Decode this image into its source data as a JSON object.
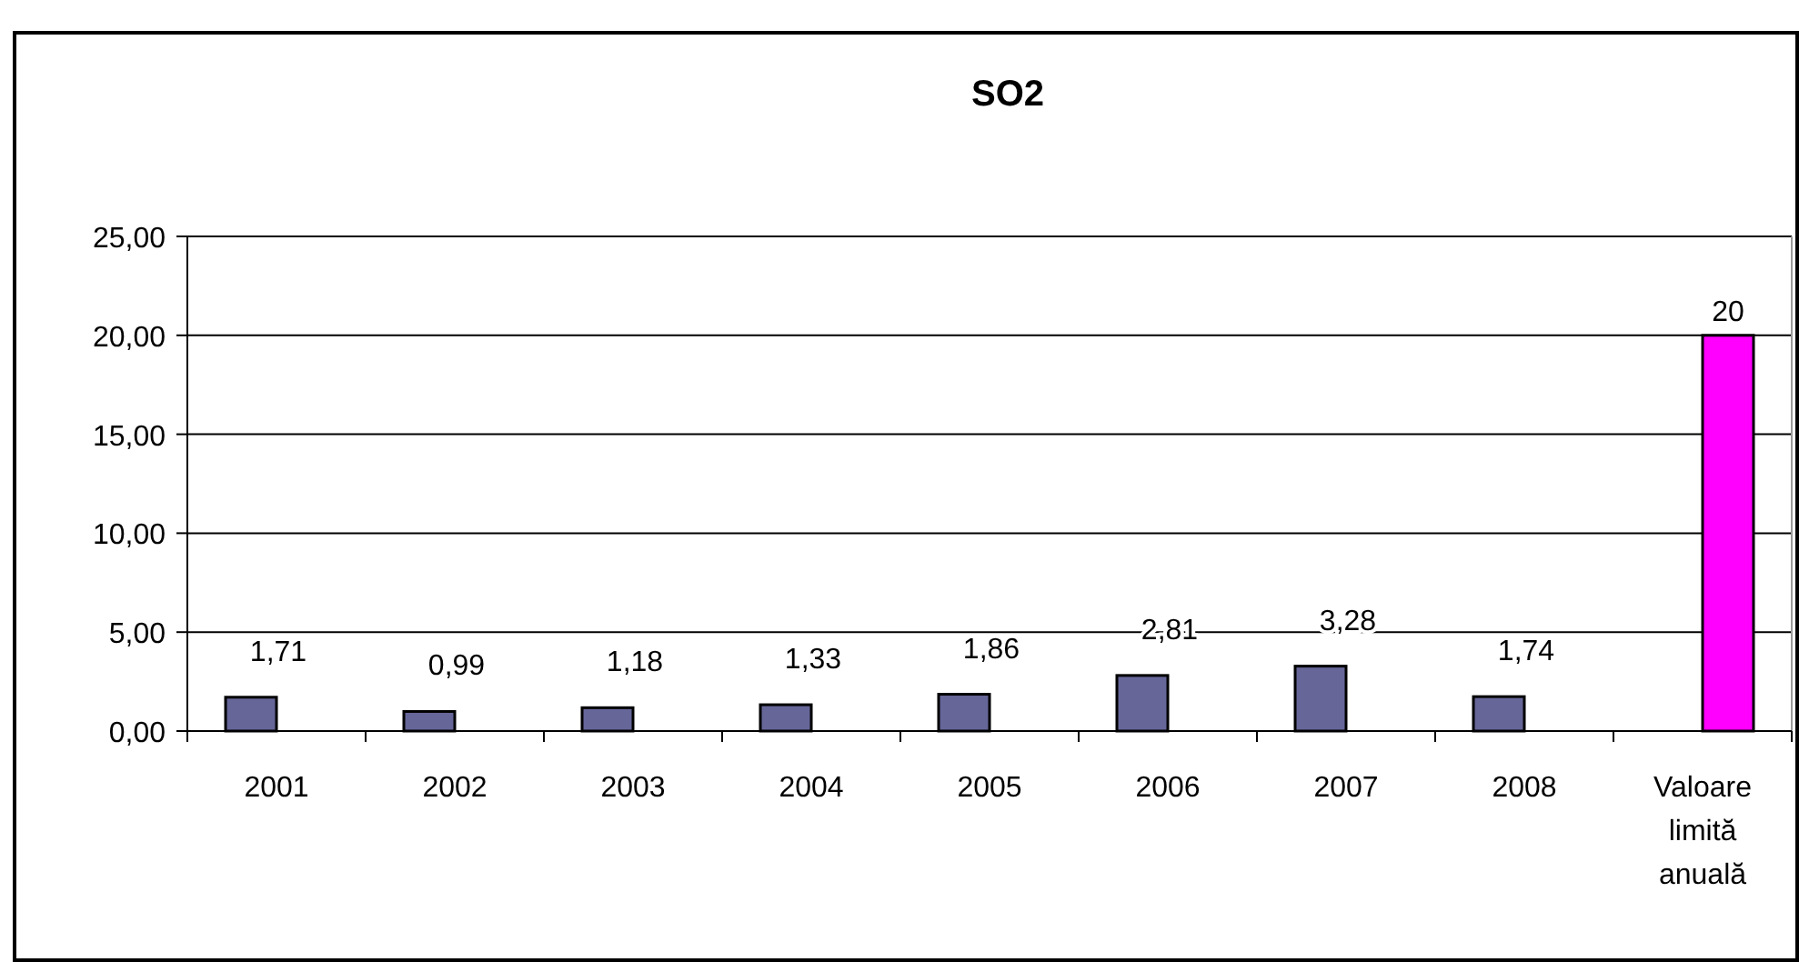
{
  "chart_data": {
    "type": "bar",
    "title": "SO2",
    "categories": [
      "2001",
      "2002",
      "2003",
      "2004",
      "2005",
      "2006",
      "2007",
      "2008",
      "Valoare limită anuală"
    ],
    "series": [
      {
        "color": "#666699",
        "values": [
          1.71,
          0.99,
          1.18,
          1.33,
          1.86,
          2.81,
          3.28,
          1.74,
          null
        ],
        "value_labels": [
          "1,71",
          "0,99",
          "1,18",
          "1,33",
          "1,86",
          "2,81",
          "3,28",
          "1,74",
          null
        ]
      },
      {
        "color": "#ff00ff",
        "values": [
          null,
          null,
          null,
          null,
          null,
          null,
          null,
          null,
          20
        ],
        "value_labels": [
          null,
          null,
          null,
          null,
          null,
          null,
          null,
          null,
          "20"
        ]
      }
    ],
    "ylim": [
      0,
      25
    ],
    "yticks": [
      {
        "value": 0,
        "label": "0,00"
      },
      {
        "value": 5,
        "label": "5,00"
      },
      {
        "value": 10,
        "label": "10,00"
      },
      {
        "value": 15,
        "label": "15,00"
      },
      {
        "value": 20,
        "label": "20,00"
      },
      {
        "value": 25,
        "label": "25,00"
      }
    ],
    "grid": "y"
  }
}
